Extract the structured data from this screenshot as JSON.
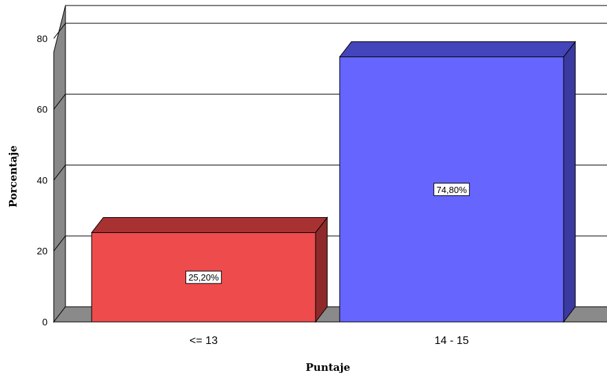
{
  "chart_data": {
    "type": "bar",
    "categories": [
      "<= 13",
      "14 - 15"
    ],
    "values": [
      25.2,
      74.8
    ],
    "data_labels": [
      "25,20%",
      "74,80%"
    ],
    "colors": [
      "#ee4b4d",
      "#6666ff"
    ],
    "side_colors": [
      "#8e2a2a",
      "#3a3aa0"
    ],
    "top_colors": [
      "#a83232",
      "#4444bb"
    ],
    "xlabel": "Puntaje",
    "ylabel": "Porcentaje",
    "yticks": [
      "0",
      "20",
      "40",
      "60",
      "80"
    ],
    "ylim": [
      0,
      80
    ],
    "grid": true,
    "style": "3d"
  }
}
